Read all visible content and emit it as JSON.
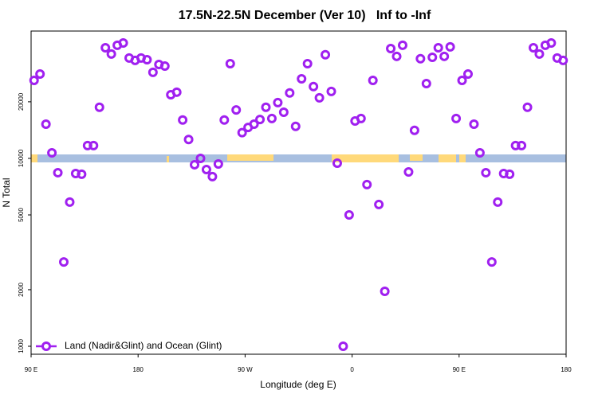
{
  "chart_data": {
    "type": "scatter",
    "title": "17.5N-22.5N December (Ver 10)   Inf to -Inf",
    "x_label": "Longitude (deg E)",
    "y_label": "N Total",
    "xlim": [
      90,
      540
    ],
    "xticks": [
      {
        "value": 90,
        "label": "90 E"
      },
      {
        "value": 180,
        "label": "180"
      },
      {
        "value": 270,
        "label": "90 W"
      },
      {
        "value": 360,
        "label": "0"
      },
      {
        "value": 450,
        "label": "90 E"
      },
      {
        "value": 540,
        "label": "180"
      }
    ],
    "ylim": [
      907,
      47600
    ],
    "yticks": [
      1000,
      2000,
      5000,
      10000,
      20000
    ],
    "log_y": true,
    "legend": "bottom left",
    "series": [
      {
        "name": "Land (Nadir&Glint) and Ocean (Glint)",
        "color": "#a020f0",
        "x": [
          92.5,
          97.5,
          102.5,
          107.5,
          112.5,
          117.5,
          122.5,
          127.5,
          132.5,
          137.5,
          142.5,
          147.5,
          152.5,
          157.5,
          162.5,
          167.5,
          172.5,
          177.5,
          182.5,
          187.5,
          192.5,
          197.5,
          202.5,
          207.5,
          212.5,
          217.5,
          222.5,
          227.5,
          232.5,
          237.5,
          242.5,
          247.5,
          252.5,
          257.5,
          262.5,
          267.5,
          272.5,
          277.5,
          282.5,
          287.5,
          292.5,
          297.5,
          302.5,
          307.5,
          312.5,
          317.5,
          322.5,
          327.5,
          332.5,
          337.5,
          342.5,
          347.5,
          352.5,
          357.5,
          362.5,
          367.5,
          372.5,
          377.5,
          382.5,
          387.5,
          392.5,
          397.5,
          402.5,
          407.5,
          412.5,
          417.5,
          422.5,
          427.5,
          432.5,
          437.5,
          442.5,
          447.5,
          452.5,
          457.5,
          462.5,
          467.5,
          472.5,
          477.5,
          482.5,
          487.5,
          492.5,
          497.5,
          502.5,
          507.5,
          512.5,
          517.5,
          522.5,
          527.5,
          532.5,
          537.5
        ],
        "values": [
          26000,
          28100,
          15200,
          10700,
          8390,
          2810,
          5850,
          8300,
          8230,
          11700,
          11700,
          18700,
          38800,
          35900,
          40000,
          41100,
          34200,
          33200,
          34200,
          33500,
          28700,
          31600,
          31000,
          21800,
          22500,
          16000,
          12600,
          9250,
          10000,
          8720,
          8000,
          9340,
          16000,
          31900,
          18100,
          13700,
          14600,
          15200,
          16100,
          18700,
          16300,
          19800,
          17600,
          22300,
          14800,
          26500,
          31900,
          24100,
          21000,
          35600,
          22700,
          9430,
          1000,
          5000,
          15800,
          16300,
          7250,
          26000,
          5680,
          1960,
          38400,
          34900,
          40000,
          8470,
          14100,
          33900,
          25000,
          34500,
          38800,
          34900,
          39200,
          16300,
          26000,
          28100,
          15200,
          10700,
          8390,
          2810,
          5850,
          8300,
          8230,
          11700,
          11700,
          18700,
          38800,
          35900,
          40000,
          41100,
          34200,
          33200
        ]
      }
    ]
  }
}
